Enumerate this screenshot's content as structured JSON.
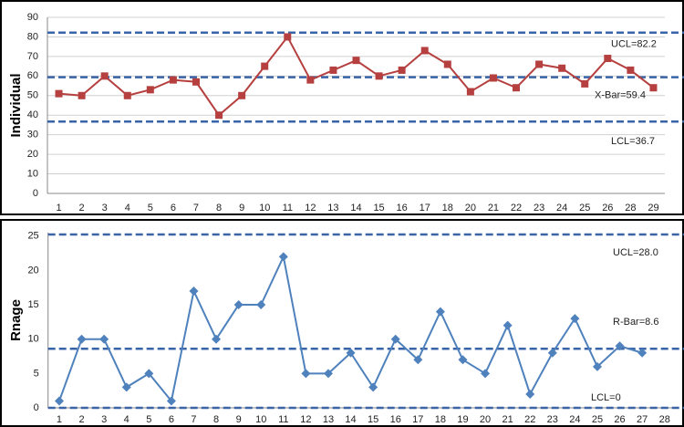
{
  "chart_data": [
    {
      "type": "line",
      "y_label": "Individual",
      "categories": [
        1,
        2,
        3,
        4,
        5,
        6,
        7,
        8,
        9,
        10,
        11,
        12,
        13,
        14,
        15,
        16,
        17,
        18,
        20,
        21,
        22,
        23,
        24,
        25,
        26,
        28,
        29
      ],
      "values": [
        51,
        50,
        60,
        50,
        53,
        58,
        57,
        40,
        50,
        65,
        80,
        58,
        63,
        68,
        60,
        63,
        73,
        66,
        52,
        59,
        54,
        66,
        64,
        56,
        69,
        63,
        54
      ],
      "color": "#b5403f",
      "marker": "square",
      "ylim": [
        0,
        90
      ],
      "yticks": [
        0,
        10,
        20,
        30,
        40,
        50,
        60,
        70,
        80,
        90
      ],
      "grid": true,
      "control_lines": [
        {
          "label": "UCL=82.2",
          "value": 82.2
        },
        {
          "label": "X-Bar=59.4",
          "value": 59.4
        },
        {
          "label": "LCL=36.7",
          "value": 36.7
        }
      ],
      "control_color": "#3a64a8"
    },
    {
      "type": "line",
      "y_label": "Rnage",
      "categories": [
        1,
        2,
        3,
        4,
        5,
        6,
        7,
        8,
        9,
        10,
        11,
        12,
        13,
        14,
        15,
        16,
        17,
        18,
        19,
        20,
        21,
        22,
        23,
        24,
        25,
        26,
        27,
        28
      ],
      "values": [
        1,
        10,
        10,
        3,
        5,
        1,
        17,
        10,
        15,
        15,
        22,
        5,
        5,
        8,
        3,
        10,
        7,
        14,
        7,
        5,
        12,
        2,
        8,
        13,
        6,
        9,
        8,
        null
      ],
      "color": "#4f81bd",
      "marker": "diamond",
      "ylim": [
        0,
        25.5
      ],
      "yticks": [
        0,
        5,
        10,
        15,
        20,
        25
      ],
      "grid": false,
      "control_lines": [
        {
          "label": "UCL=28.0",
          "value": 28.0
        },
        {
          "label": "R-Bar=8.6",
          "value": 8.6
        },
        {
          "label": "LCL=0",
          "value": 0
        }
      ],
      "control_color": "#3a64a8"
    }
  ]
}
